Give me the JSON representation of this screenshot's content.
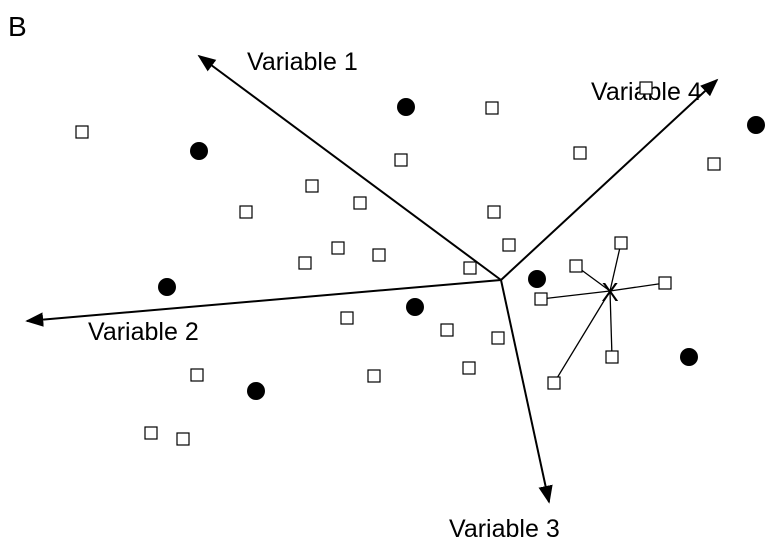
{
  "panel_label": "B",
  "axes": [
    {
      "label": "Variable 1"
    },
    {
      "label": "Variable 2"
    },
    {
      "label": "Variable 3"
    },
    {
      "label": "Variable 4"
    }
  ],
  "query_point": {
    "label": "X"
  },
  "colors": {
    "line": "#000000",
    "filled_marker": "#000000",
    "open_marker_fill": "#ffffff"
  }
}
